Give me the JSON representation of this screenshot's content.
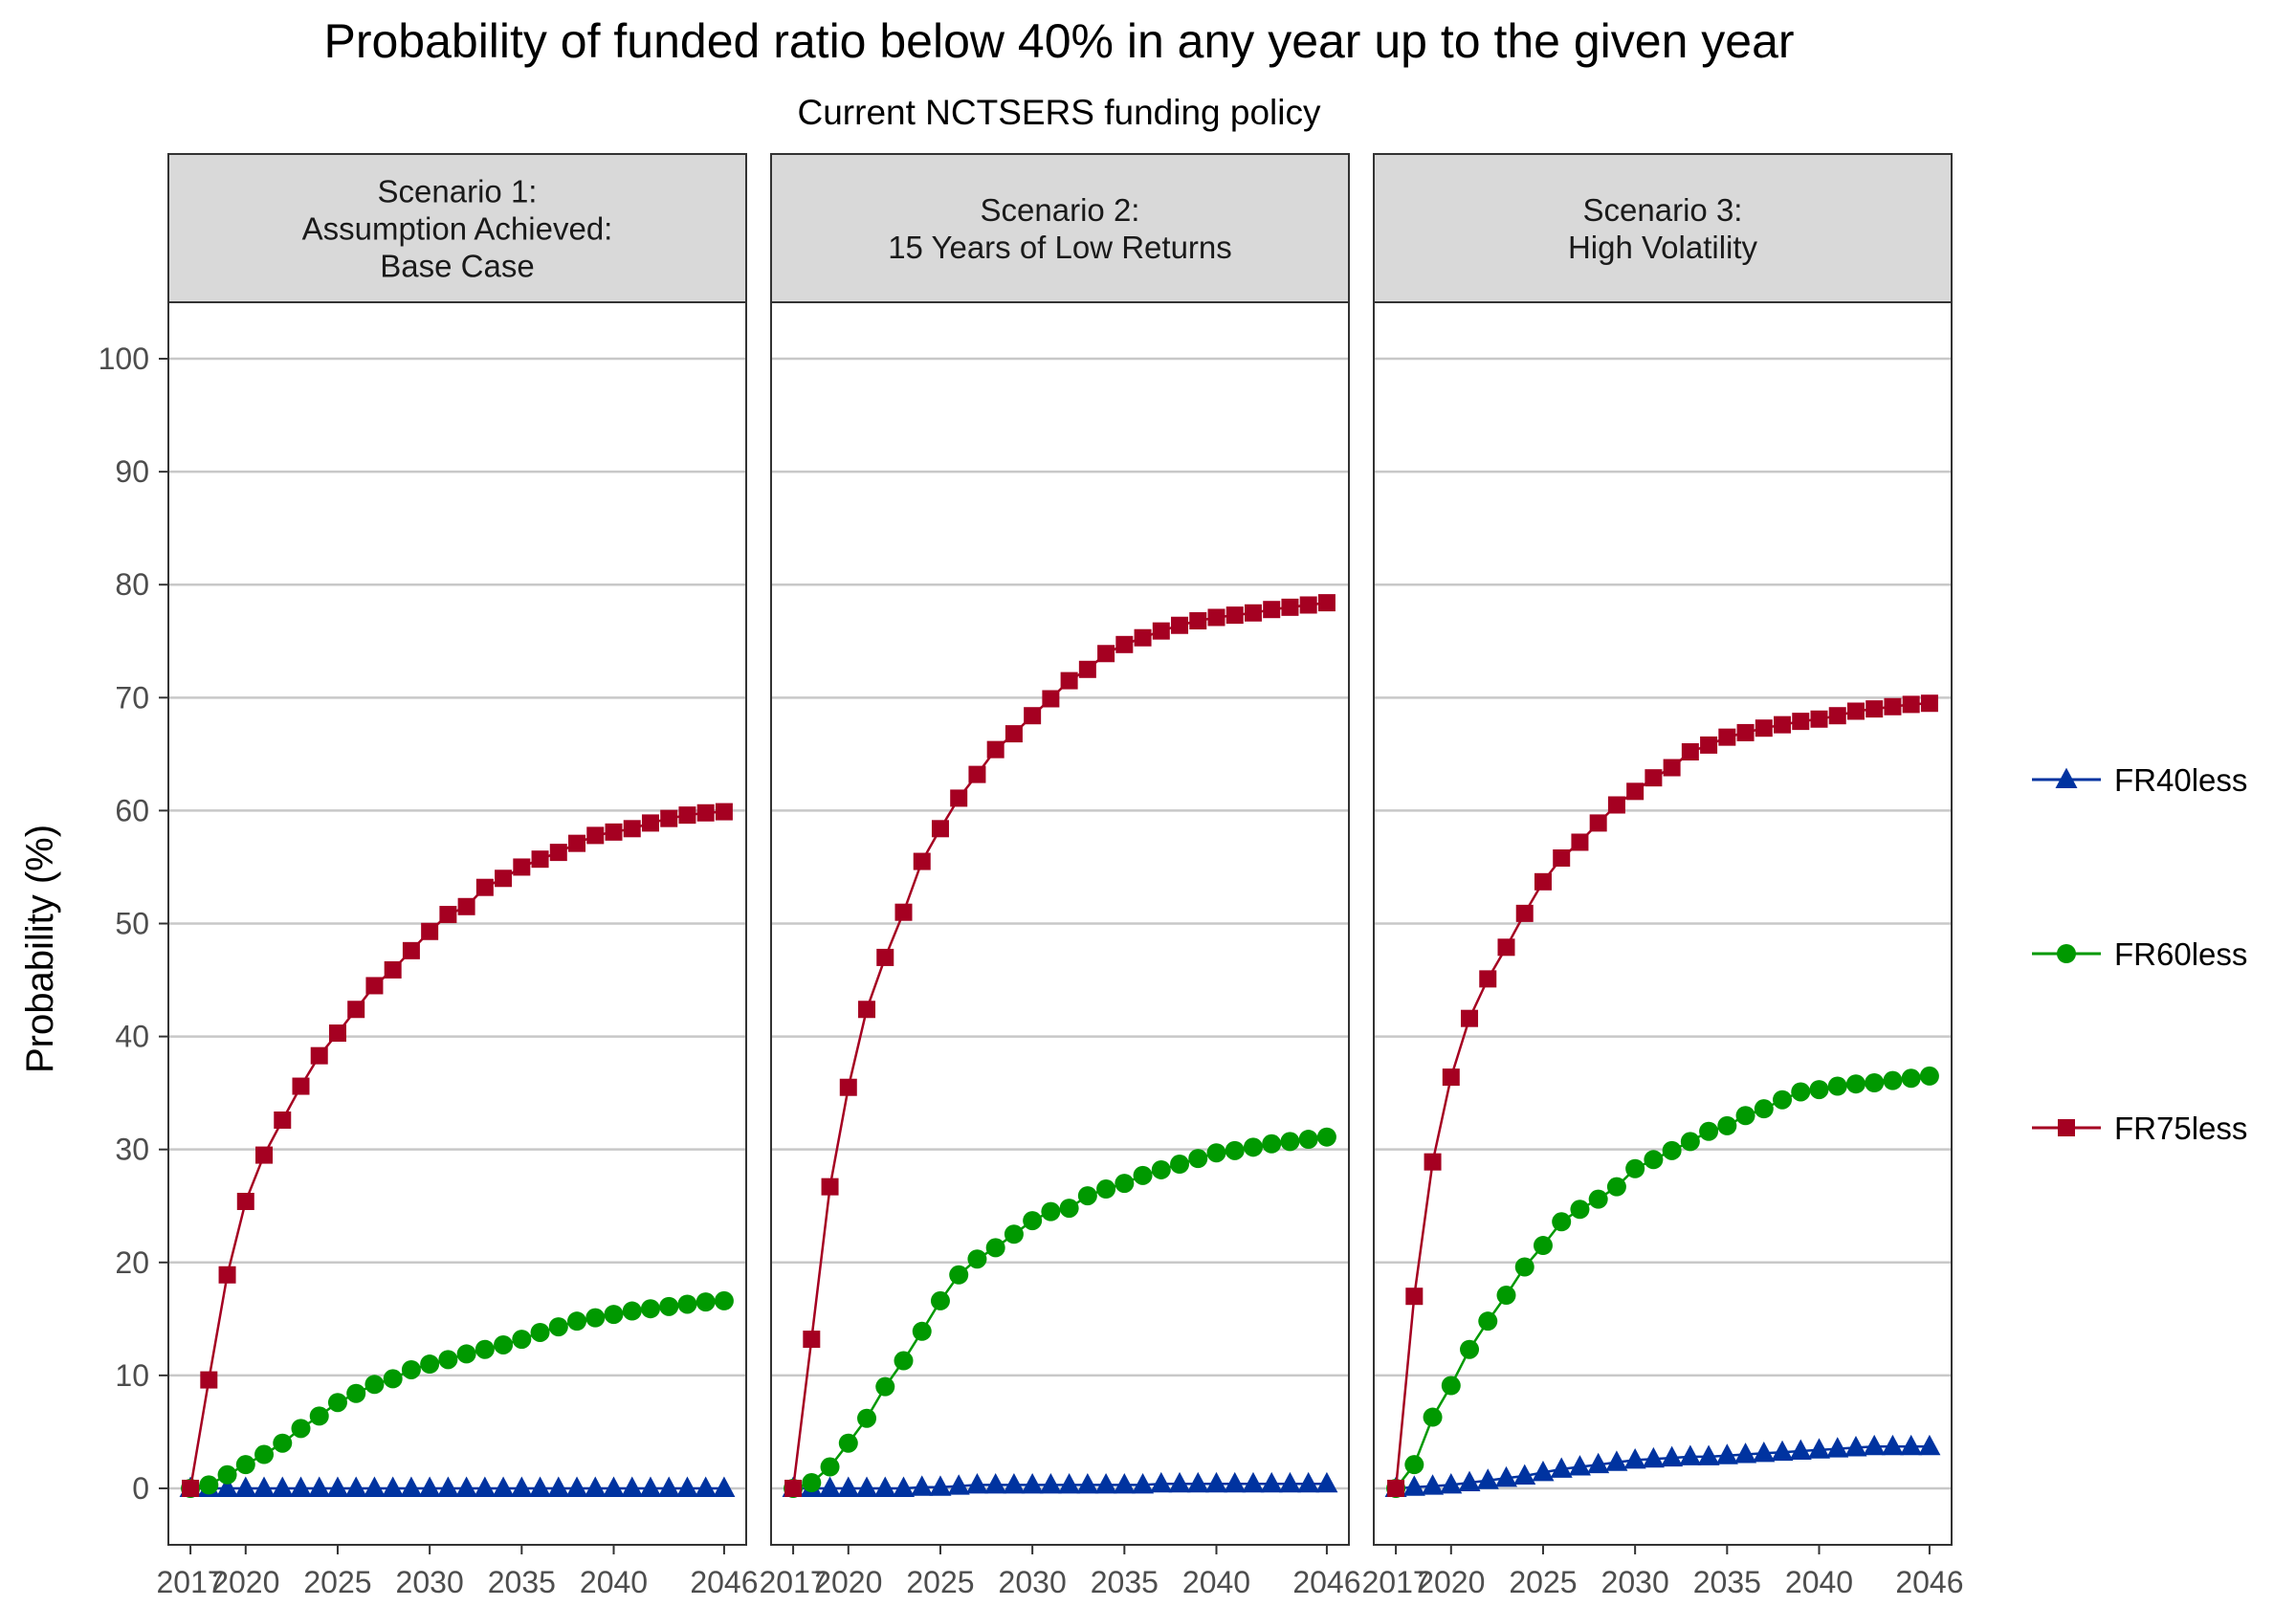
{
  "colors": {
    "FR40less": "#0033a0",
    "FR60less": "#009900",
    "FR75less": "#a50021",
    "grid": "#c8c8c8",
    "strip_fill": "#d9d9d9",
    "panel_border": "#333333"
  },
  "chart_data": {
    "type": "line",
    "title": "Probability of funded ratio below 40% in any year up to the given year",
    "subtitle": "Current NCTSERS funding policy",
    "ylabel": "Probability (%)",
    "xlabel": "",
    "ylim": [
      -5,
      105
    ],
    "yticks": [
      0,
      10,
      20,
      30,
      40,
      50,
      60,
      70,
      80,
      90,
      100
    ],
    "xlim": [
      2015.8,
      2047.2
    ],
    "xticks": [
      2017,
      2020,
      2025,
      2030,
      2035,
      2040,
      2046
    ],
    "grid": "horizontal",
    "legend_position": "right",
    "x": [
      2017,
      2018,
      2019,
      2020,
      2021,
      2022,
      2023,
      2024,
      2025,
      2026,
      2027,
      2028,
      2029,
      2030,
      2031,
      2032,
      2033,
      2034,
      2035,
      2036,
      2037,
      2038,
      2039,
      2040,
      2041,
      2042,
      2043,
      2044,
      2045,
      2046
    ],
    "legend": [
      {
        "key": "FR40less",
        "label": "FR40less",
        "marker": "triangle"
      },
      {
        "key": "FR60less",
        "label": "FR60less",
        "marker": "circle"
      },
      {
        "key": "FR75less",
        "label": "FR75less",
        "marker": "square"
      }
    ],
    "panels": [
      {
        "strip": [
          "Scenario 1:",
          "Assumption Achieved:",
          "Base Case"
        ],
        "series": [
          {
            "key": "FR40less",
            "values": [
              0,
              0,
              0,
              0,
              0,
              0,
              0,
              0,
              0,
              0,
              0,
              0,
              0,
              0,
              0,
              0,
              0,
              0,
              0,
              0,
              0,
              0,
              0,
              0,
              0,
              0,
              0,
              0,
              0,
              0
            ]
          },
          {
            "key": "FR60less",
            "values": [
              0,
              0.3,
              1.2,
              2.1,
              3.0,
              4.0,
              5.3,
              6.4,
              7.6,
              8.4,
              9.2,
              9.7,
              10.5,
              11.0,
              11.4,
              11.9,
              12.3,
              12.7,
              13.2,
              13.8,
              14.3,
              14.8,
              15.1,
              15.4,
              15.7,
              15.9,
              16.1,
              16.3,
              16.5,
              16.6
            ]
          },
          {
            "key": "FR75less",
            "values": [
              0,
              9.6,
              18.9,
              25.4,
              29.5,
              32.6,
              35.6,
              38.3,
              40.3,
              42.4,
              44.5,
              45.9,
              47.6,
              49.3,
              50.8,
              51.5,
              53.2,
              54.0,
              55.0,
              55.7,
              56.3,
              57.1,
              57.8,
              58.1,
              58.4,
              58.9,
              59.3,
              59.6,
              59.8,
              59.9
            ]
          }
        ]
      },
      {
        "strip": [
          "Scenario 2:",
          "15 Years of Low Returns"
        ],
        "series": [
          {
            "key": "FR40less",
            "values": [
              0,
              0,
              0,
              0,
              0,
              0,
              0,
              0.1,
              0.1,
              0.2,
              0.3,
              0.3,
              0.3,
              0.3,
              0.3,
              0.3,
              0.3,
              0.3,
              0.3,
              0.3,
              0.4,
              0.4,
              0.4,
              0.4,
              0.4,
              0.4,
              0.4,
              0.4,
              0.4,
              0.4
            ]
          },
          {
            "key": "FR60less",
            "values": [
              0,
              0.5,
              1.9,
              4.0,
              6.2,
              9.0,
              11.3,
              13.9,
              16.6,
              18.9,
              20.3,
              21.3,
              22.5,
              23.7,
              24.5,
              24.8,
              25.9,
              26.5,
              27.0,
              27.7,
              28.2,
              28.7,
              29.2,
              29.7,
              29.9,
              30.2,
              30.5,
              30.7,
              30.9,
              31.1
            ]
          },
          {
            "key": "FR75less",
            "values": [
              0,
              13.2,
              26.7,
              35.5,
              42.4,
              47.0,
              51.0,
              55.5,
              58.4,
              61.1,
              63.2,
              65.4,
              66.8,
              68.4,
              69.9,
              71.5,
              72.5,
              73.9,
              74.7,
              75.3,
              75.9,
              76.4,
              76.8,
              77.1,
              77.3,
              77.5,
              77.8,
              78.0,
              78.2,
              78.4
            ]
          }
        ]
      },
      {
        "strip": [
          "Scenario 3:",
          "High Volatility"
        ],
        "series": [
          {
            "key": "FR40less",
            "values": [
              0,
              0.1,
              0.2,
              0.3,
              0.5,
              0.7,
              0.9,
              1.1,
              1.4,
              1.7,
              1.9,
              2.1,
              2.3,
              2.5,
              2.6,
              2.7,
              2.8,
              2.8,
              2.9,
              3.0,
              3.1,
              3.2,
              3.3,
              3.4,
              3.5,
              3.6,
              3.7,
              3.7,
              3.7,
              3.7
            ]
          },
          {
            "key": "FR60less",
            "values": [
              0,
              2.1,
              6.3,
              9.1,
              12.3,
              14.8,
              17.1,
              19.6,
              21.5,
              23.6,
              24.7,
              25.6,
              26.7,
              28.3,
              29.1,
              29.9,
              30.7,
              31.6,
              32.1,
              33.0,
              33.6,
              34.4,
              35.1,
              35.3,
              35.6,
              35.8,
              35.9,
              36.1,
              36.3,
              36.5
            ]
          },
          {
            "key": "FR75less",
            "values": [
              0,
              17.0,
              28.9,
              36.4,
              41.6,
              45.1,
              47.9,
              50.9,
              53.7,
              55.8,
              57.2,
              58.9,
              60.5,
              61.7,
              62.9,
              63.8,
              65.2,
              65.8,
              66.5,
              66.9,
              67.3,
              67.6,
              67.9,
              68.1,
              68.4,
              68.8,
              69.0,
              69.2,
              69.4,
              69.5
            ]
          }
        ]
      }
    ]
  }
}
